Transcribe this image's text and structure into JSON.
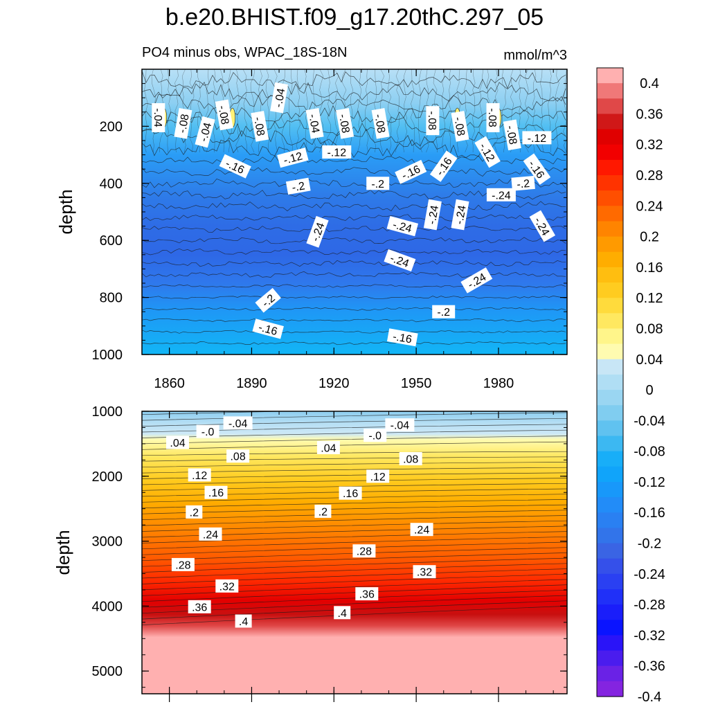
{
  "chart_data": {
    "type": "contour",
    "title": "b.e20.BHIST.f09_g17.20thC.297_05",
    "subtitle_left": "PO4 minus obs, WPAC_18S-18N",
    "subtitle_right": "mmol/m^3",
    "panels": [
      {
        "name": "upper",
        "ylabel": "depth",
        "ylim": [
          0,
          1000
        ],
        "xlim": [
          1850,
          2005
        ],
        "yticks": [
          200,
          400,
          600,
          800,
          1000
        ],
        "ytick_labels": [
          "200",
          "400",
          "600",
          "800",
          "1000"
        ],
        "xticks": [
          1860,
          1890,
          1920,
          1950,
          1980
        ],
        "xtick_labels": [
          "1860",
          "1890",
          "1920",
          "1950",
          "1980"
        ],
        "contour_labels": [
          {
            "text": "-.04",
            "year": 1856,
            "depth": 170,
            "angle": 90
          },
          {
            "text": "-.04",
            "year": 1873,
            "depth": 220,
            "angle": -75
          },
          {
            "text": "-.08",
            "year": 1865,
            "depth": 190,
            "angle": -80
          },
          {
            "text": "-.08",
            "year": 1880,
            "depth": 160,
            "angle": 80
          },
          {
            "text": "-.04",
            "year": 1900,
            "depth": 100,
            "angle": -80
          },
          {
            "text": "-.08",
            "year": 1893,
            "depth": 200,
            "angle": 80
          },
          {
            "text": "-.04",
            "year": 1913,
            "depth": 190,
            "angle": 80
          },
          {
            "text": "-.08",
            "year": 1924,
            "depth": 190,
            "angle": 80
          },
          {
            "text": "-.08",
            "year": 1937,
            "depth": 190,
            "angle": 80
          },
          {
            "text": "-.08",
            "year": 1956,
            "depth": 180,
            "angle": 90
          },
          {
            "text": "-.08",
            "year": 1966,
            "depth": 200,
            "angle": 80
          },
          {
            "text": "-.08",
            "year": 1978,
            "depth": 170,
            "angle": 90
          },
          {
            "text": "-.08",
            "year": 1985,
            "depth": 230,
            "angle": 80
          },
          {
            "text": "-.12",
            "year": 1994,
            "depth": 240,
            "angle": 0
          },
          {
            "text": "-.12",
            "year": 1921,
            "depth": 290,
            "angle": 0
          },
          {
            "text": "-.12",
            "year": 1905,
            "depth": 310,
            "angle": -15
          },
          {
            "text": "-.12",
            "year": 1976,
            "depth": 290,
            "angle": 60
          },
          {
            "text": "-.16",
            "year": 1884,
            "depth": 340,
            "angle": 25
          },
          {
            "text": "-.16",
            "year": 1948,
            "depth": 360,
            "angle": -25
          },
          {
            "text": "-.16",
            "year": 1960,
            "depth": 340,
            "angle": -55
          },
          {
            "text": "-.16",
            "year": 1994,
            "depth": 350,
            "angle": 55
          },
          {
            "text": "-.2",
            "year": 1907,
            "depth": 410,
            "angle": -10
          },
          {
            "text": "-.2",
            "year": 1936,
            "depth": 400,
            "angle": 0
          },
          {
            "text": "-.2",
            "year": 1989,
            "depth": 400,
            "angle": -5
          },
          {
            "text": "-.24",
            "year": 1956,
            "depth": 510,
            "angle": -80
          },
          {
            "text": "-.24",
            "year": 1966,
            "depth": 510,
            "angle": -80
          },
          {
            "text": "-.24",
            "year": 1981,
            "depth": 440,
            "angle": 0
          },
          {
            "text": "-.24",
            "year": 1945,
            "depth": 550,
            "angle": 15
          },
          {
            "text": "-.24",
            "year": 1996,
            "depth": 550,
            "angle": 60
          },
          {
            "text": "-.24",
            "year": 1914,
            "depth": 570,
            "angle": -70
          },
          {
            "text": "-.24",
            "year": 1944,
            "depth": 670,
            "angle": 20
          },
          {
            "text": "-.24",
            "year": 1972,
            "depth": 740,
            "angle": -30
          },
          {
            "text": "-.2",
            "year": 1896,
            "depth": 810,
            "angle": -40
          },
          {
            "text": "-.2",
            "year": 1960,
            "depth": 850,
            "angle": 0
          },
          {
            "text": "-.16",
            "year": 1896,
            "depth": 910,
            "angle": 15
          },
          {
            "text": "-.16",
            "year": 1945,
            "depth": 940,
            "angle": 10
          }
        ]
      },
      {
        "name": "lower",
        "ylabel": "depth",
        "ylim": [
          1000,
          5350
        ],
        "xlim": [
          1850,
          2005
        ],
        "yticks": [
          1000,
          2000,
          3000,
          4000,
          5000
        ],
        "ytick_labels": [
          "1000",
          "2000",
          "3000",
          "4000",
          "5000"
        ],
        "xticks": [
          1860,
          1890,
          1920,
          1950,
          1980
        ],
        "contour_labels": [
          {
            "text": "-.04",
            "year": 1885,
            "depth": 1180,
            "angle": 0
          },
          {
            "text": "-.04",
            "year": 1944,
            "depth": 1210,
            "angle": 0
          },
          {
            "text": "-.0",
            "year": 1874,
            "depth": 1310,
            "angle": 0
          },
          {
            "text": "-.0",
            "year": 1935,
            "depth": 1370,
            "angle": 0
          },
          {
            "text": ".04",
            "year": 1863,
            "depth": 1480,
            "angle": 0
          },
          {
            "text": ".04",
            "year": 1918,
            "depth": 1560,
            "angle": 0
          },
          {
            "text": ".08",
            "year": 1885,
            "depth": 1690,
            "angle": 0
          },
          {
            "text": ".08",
            "year": 1948,
            "depth": 1730,
            "angle": 0
          },
          {
            "text": ".12",
            "year": 1871,
            "depth": 1980,
            "angle": 0
          },
          {
            "text": ".12",
            "year": 1936,
            "depth": 2000,
            "angle": 0
          },
          {
            "text": ".16",
            "year": 1877,
            "depth": 2250,
            "angle": 0
          },
          {
            "text": ".16",
            "year": 1926,
            "depth": 2260,
            "angle": 0
          },
          {
            "text": ".2",
            "year": 1869,
            "depth": 2550,
            "angle": 0
          },
          {
            "text": ".2",
            "year": 1916,
            "depth": 2540,
            "angle": 0
          },
          {
            "text": ".24",
            "year": 1875,
            "depth": 2890,
            "angle": 0
          },
          {
            "text": ".24",
            "year": 1952,
            "depth": 2820,
            "angle": 0
          },
          {
            "text": ".28",
            "year": 1865,
            "depth": 3360,
            "angle": 0
          },
          {
            "text": ".28",
            "year": 1931,
            "depth": 3150,
            "angle": 0
          },
          {
            "text": ".32",
            "year": 1881,
            "depth": 3690,
            "angle": 0
          },
          {
            "text": ".32",
            "year": 1953,
            "depth": 3470,
            "angle": 0
          },
          {
            "text": ".36",
            "year": 1871,
            "depth": 4010,
            "angle": 0
          },
          {
            "text": ".36",
            "year": 1932,
            "depth": 3810,
            "angle": 0
          },
          {
            "text": ".4",
            "year": 1887,
            "depth": 4230,
            "angle": 0
          },
          {
            "text": ".4",
            "year": 1923,
            "depth": 4100,
            "angle": 0
          }
        ]
      }
    ],
    "colorbar": {
      "labels": [
        "0.4",
        "0.36",
        "0.32",
        "0.28",
        "0.24",
        "0.2",
        "0.16",
        "0.12",
        "0.08",
        "0.04",
        "0",
        "-0.04",
        "-0.08",
        "-0.12",
        "-0.16",
        "-0.2",
        "-0.24",
        "-0.28",
        "-0.32",
        "-0.36",
        "-0.4"
      ],
      "colors_top_to_bottom": [
        "#ffb0b0",
        "#f07878",
        "#e04848",
        "#d01818",
        "#e00000",
        "#f20000",
        "#ff1800",
        "#ff3300",
        "#ff4f00",
        "#ff6a00",
        "#ff8400",
        "#ff9a00",
        "#ffad00",
        "#ffbe10",
        "#ffcc20",
        "#ffdb3c",
        "#ffe860",
        "#fff58a",
        "#fffbb0",
        "#c8e6f6",
        "#b0def4",
        "#9ad6f2",
        "#80cdf0",
        "#60c2f0",
        "#3cb8f2",
        "#18aef8",
        "#10a4fa",
        "#1898fa",
        "#228cf8",
        "#2a80f2",
        "#3274ea",
        "#3a64e4",
        "#3550ea",
        "#2a40f2",
        "#2030f8",
        "#1a1efa",
        "#0a14ff",
        "#2a14f8",
        "#4a1cee",
        "#6a22e6",
        "#8424e0"
      ]
    },
    "colors": {
      "upper_surface": "#b0dcf4",
      "upper_mid": "#2e76e8",
      "upper_core": "#2e68e6",
      "upper_bottom": "#10b0f6",
      "yellow_patch": "#fff176"
    }
  }
}
